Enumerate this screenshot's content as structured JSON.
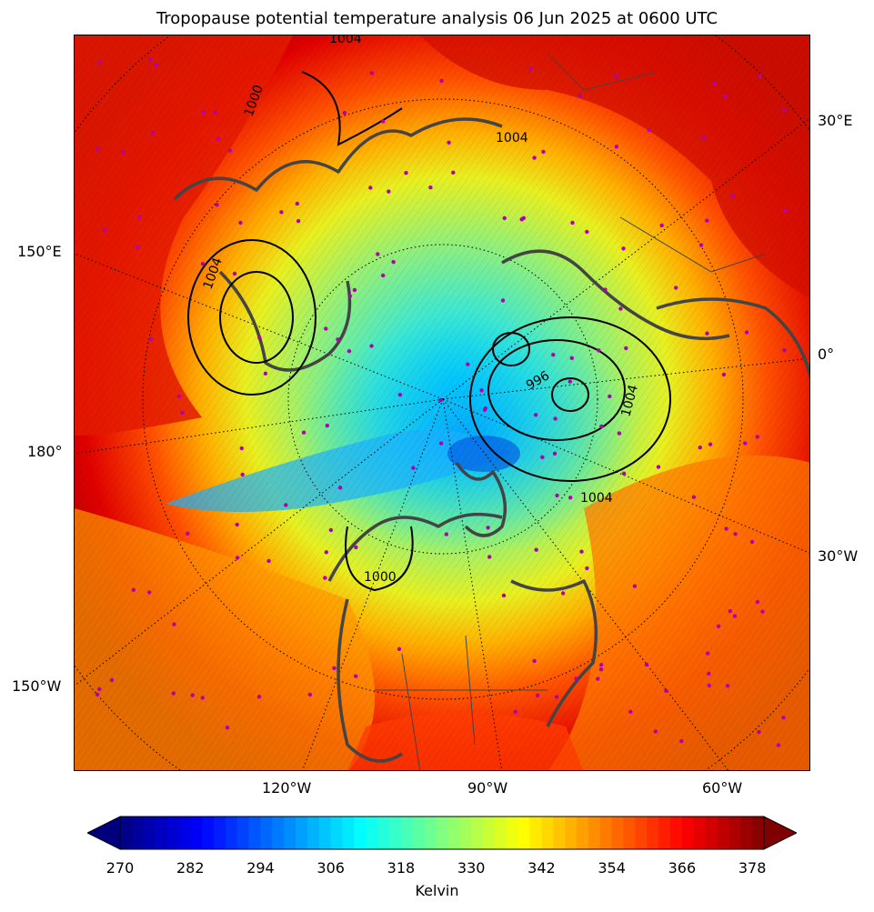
{
  "title": "Tropopause potential temperature analysis 06 Jun 2025 at 0600 UTC",
  "map": {
    "projection": "north polar stereographic",
    "lon_labels": {
      "e30": "30°E",
      "e150": "150°E",
      "zero": "0°",
      "w180": "180°",
      "w30": "30°W",
      "w150": "150°W",
      "w120": "120°W",
      "w90": "90°W",
      "w60": "60°W"
    },
    "contour_labels": [
      "1004",
      "1004",
      "1004",
      "1004",
      "1000",
      "1000",
      "996",
      "1004"
    ],
    "station_marker_color": "#b000b0",
    "coastline_color": "#444444"
  },
  "colorbar": {
    "label": "Kelvin",
    "min": 270,
    "max": 380,
    "ticks": [
      "270",
      "282",
      "294",
      "306",
      "318",
      "330",
      "342",
      "354",
      "366",
      "378"
    ],
    "colormap": "jet"
  }
}
